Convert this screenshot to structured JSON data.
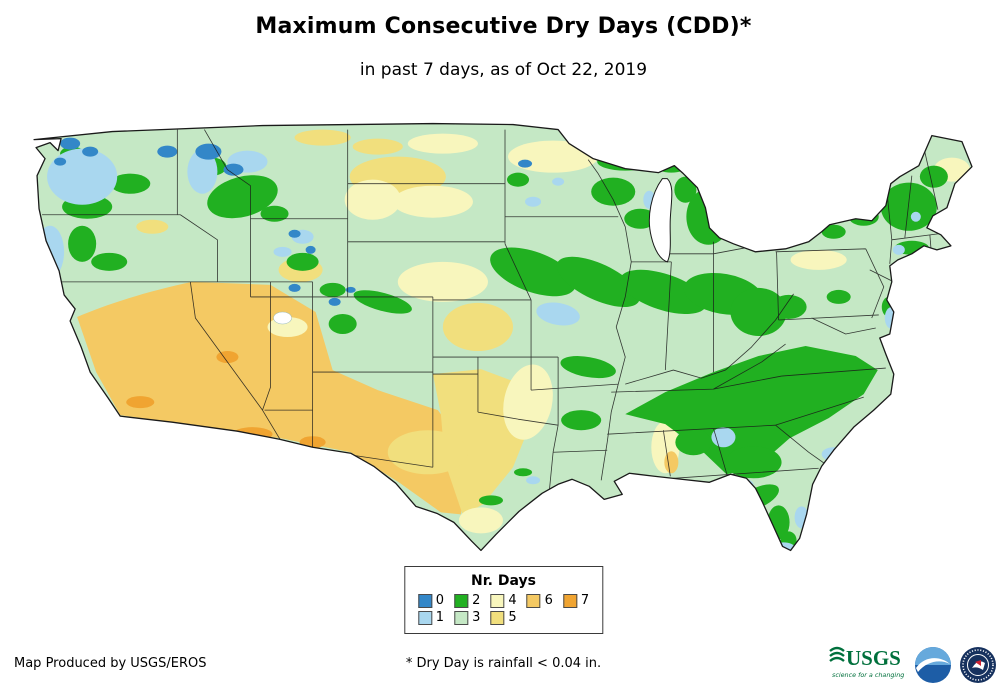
{
  "header": {
    "title": "Maximum Consecutive Dry Days (CDD)*",
    "subtitle": "in past 7 days, as of Oct 22, 2019"
  },
  "legend": {
    "title": "Nr. Days",
    "rows": [
      [
        "0",
        "2",
        "4",
        "6",
        "7"
      ],
      [
        "1",
        "3",
        "5"
      ]
    ],
    "items": [
      {
        "label": "0",
        "color": "#3387c8"
      },
      {
        "label": "1",
        "color": "#a9d7ef"
      },
      {
        "label": "2",
        "color": "#21b021"
      },
      {
        "label": "3",
        "color": "#c5e8c5"
      },
      {
        "label": "4",
        "color": "#f8f6bd"
      },
      {
        "label": "5",
        "color": "#f1df7d"
      },
      {
        "label": "6",
        "color": "#f4c963"
      },
      {
        "label": "7",
        "color": "#f0a431"
      }
    ]
  },
  "map": {
    "region": "Contiguous United States",
    "base_level": "3",
    "water_color": "#ffffff",
    "border_color": "#1a1a1a"
  },
  "footer": {
    "credit": "Map Produced by USGS/EROS",
    "note": "* Dry Day is rainfall < 0.04 in."
  },
  "logos": {
    "usgs": {
      "name": "USGS",
      "tagline": "science for a changing world",
      "color": "#00703c"
    },
    "noaa": {
      "name": "NOAA",
      "color": "#1d5da6"
    },
    "nws": {
      "name": "National Weather Service",
      "color": "#16315e"
    }
  }
}
